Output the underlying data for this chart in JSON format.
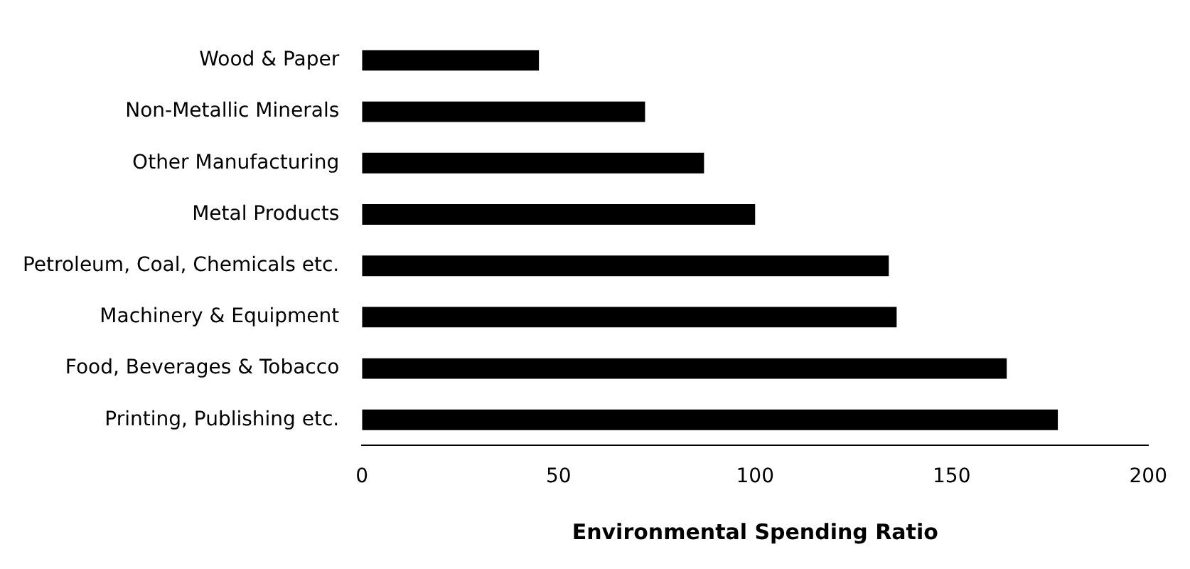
{
  "chart_data": {
    "type": "bar",
    "orientation": "horizontal",
    "xlabel": "Environmental Spending Ratio",
    "categories": [
      "Wood & Paper",
      "Non-Metallic Minerals",
      "Other Manufacturing",
      "Metal Products",
      "Petroleum, Coal, Chemicals etc.",
      "Machinery & Equipment",
      "Food, Beverages & Tobacco",
      "Printing, Publishing etc."
    ],
    "values": [
      45,
      72,
      87,
      100,
      134,
      136,
      164,
      177
    ],
    "color": "#000000",
    "xlim": [
      0,
      200
    ],
    "xticks": [
      0,
      50,
      100,
      150,
      200
    ],
    "grid": false,
    "legend": false
  }
}
